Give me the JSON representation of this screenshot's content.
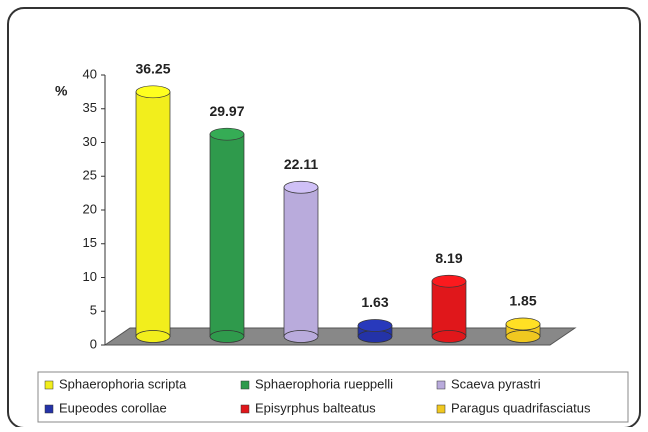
{
  "chart_data": {
    "type": "bar",
    "y_label": "%",
    "categories": [
      null
    ],
    "series": [
      {
        "name": "Sphaerophoria scripta",
        "color": "#f2ee1c",
        "values": [
          36.25
        ]
      },
      {
        "name": "Sphaerophoria rueppelli",
        "color": "#2f9a4c",
        "values": [
          29.97
        ]
      },
      {
        "name": "Scaeva pyrastri",
        "color": "#b9abdc",
        "values": [
          22.11
        ]
      },
      {
        "name": "Eupeodes corollae",
        "color": "#2433a8",
        "values": [
          1.63
        ]
      },
      {
        "name": "Episyrphus balteatus",
        "color": "#e0171b",
        "values": [
          8.19
        ]
      },
      {
        "name": "Paragus quadrifasciatus",
        "color": "#f0c820",
        "values": [
          1.85
        ]
      }
    ],
    "ylim": [
      0,
      40
    ],
    "yticks": [
      0,
      5,
      10,
      15,
      20,
      25,
      30,
      35,
      40
    ],
    "grid": false
  }
}
